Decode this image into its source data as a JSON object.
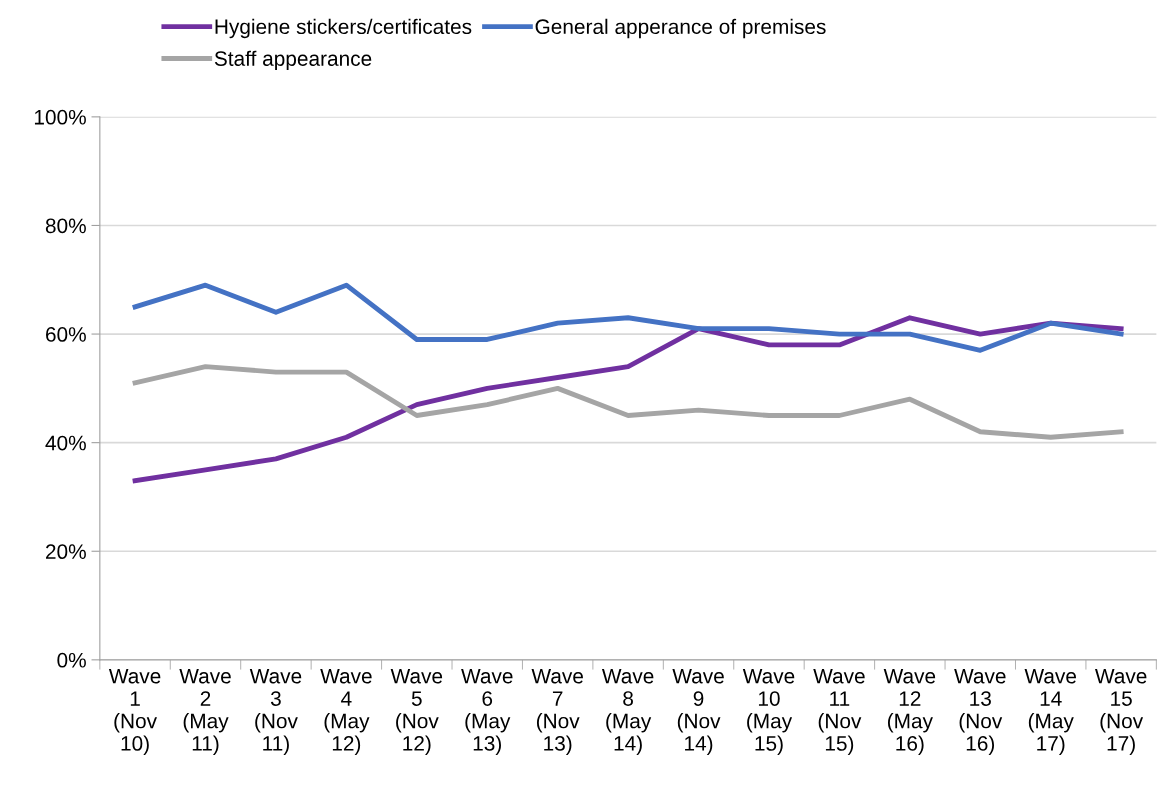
{
  "chart_data": {
    "type": "line",
    "categories": [
      "Wave 1 (Nov 10)",
      "Wave 2 (May 11)",
      "Wave 3 (Nov 11)",
      "Wave 4 (May 12)",
      "Wave 5 (Nov 12)",
      "Wave 6 (May 13)",
      "Wave 7 (Nov 13)",
      "Wave 8 (May 14)",
      "Wave 9 (Nov 14)",
      "Wave 10 (May 15)",
      "Wave 11 (Nov 15)",
      "Wave 12 (May 16)",
      "Wave 13 (Nov 16)",
      "Wave 14 (May 17)",
      "Wave 15 (Nov 17)"
    ],
    "series": [
      {
        "name": "Hygiene stickers/certificates",
        "color": "#7030a0",
        "values": [
          33,
          35,
          37,
          41,
          47,
          50,
          52,
          54,
          61,
          58,
          58,
          63,
          60,
          62,
          61
        ]
      },
      {
        "name": "General apperance of premises",
        "color": "#4472c4",
        "values": [
          65,
          69,
          64,
          69,
          59,
          59,
          62,
          63,
          61,
          61,
          60,
          60,
          57,
          62,
          60
        ]
      },
      {
        "name": "Staff appearance",
        "color": "#a5a5a5",
        "values": [
          51,
          54,
          53,
          53,
          45,
          47,
          50,
          45,
          46,
          45,
          45,
          48,
          42,
          41,
          42
        ]
      }
    ],
    "ylim": [
      0,
      100
    ],
    "yticks": [
      {
        "value": 0,
        "label": "0%"
      },
      {
        "value": 20,
        "label": "20%"
      },
      {
        "value": 40,
        "label": "40%"
      },
      {
        "value": 60,
        "label": "60%"
      },
      {
        "value": 80,
        "label": "80%"
      },
      {
        "value": 100,
        "label": "100%"
      }
    ],
    "grid": "y",
    "legend": "top",
    "marker": "none",
    "line_style": "solid"
  }
}
